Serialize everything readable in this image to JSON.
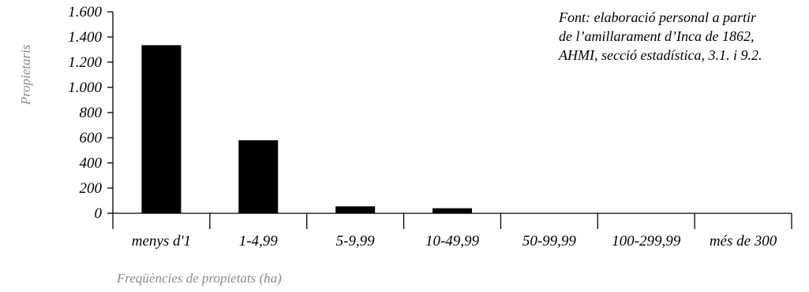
{
  "chart_data": {
    "type": "bar",
    "categories": [
      "menys d'1",
      "1-4,99",
      "5-9,99",
      "10-49,99",
      "50-99,99",
      "100-299,99",
      "més de 300"
    ],
    "values": [
      1335,
      580,
      55,
      40,
      0,
      0,
      0
    ],
    "ylabel": "Propietaris",
    "xlabel": "Freqüències de propietats (ha)",
    "ylim": [
      0,
      1600
    ],
    "yticks": [
      0,
      200,
      400,
      600,
      800,
      1000,
      1200,
      1400,
      1600
    ],
    "ytick_labels": [
      "0",
      "200",
      "400",
      "600",
      "800",
      "1.000",
      "1.200",
      "1.400",
      "1.600"
    ],
    "grid": false,
    "bar_color": "#000000"
  },
  "source_note": {
    "line1": "Font: elaboració personal a partir",
    "line2": "de l’amillarament d’Inca de 1862,",
    "line3": "AHMI, secció estadística, 3.1. i 9.2."
  }
}
